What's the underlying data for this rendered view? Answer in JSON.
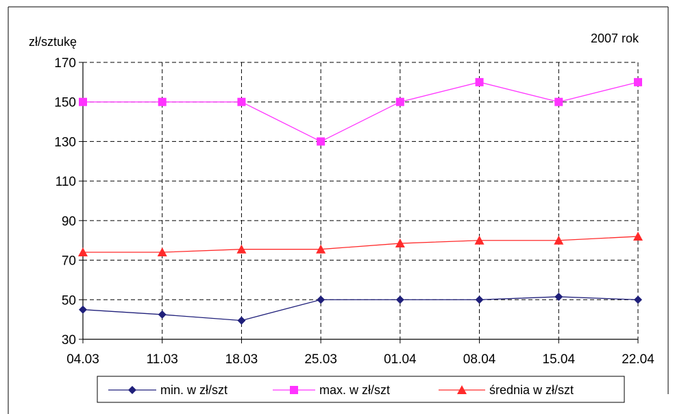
{
  "chart_data": {
    "type": "line",
    "ylabel": "zł/sztukę",
    "annotation": "2007 rok",
    "categories": [
      "04.03",
      "11.03",
      "18.03",
      "25.03",
      "01.04",
      "08.04",
      "15.04",
      "22.04"
    ],
    "ylim": [
      30,
      170
    ],
    "yticks": [
      30,
      50,
      70,
      90,
      110,
      130,
      150,
      170
    ],
    "grid": true,
    "legend_position": "bottom",
    "series": [
      {
        "name": "min. w zł/szt",
        "color": "#1f1f7a",
        "marker": "diamond",
        "values": [
          45,
          42.5,
          39.5,
          50,
          50,
          50,
          51.5,
          50
        ]
      },
      {
        "name": "max. w zł/szt",
        "color": "#ff33ff",
        "marker": "square",
        "values": [
          150,
          150,
          150,
          130,
          150,
          160,
          150,
          160
        ]
      },
      {
        "name": "średnia w zł/szt",
        "color": "#ff2a2a",
        "marker": "triangle",
        "values": [
          74,
          74,
          75.5,
          75.5,
          78.5,
          80,
          80,
          82
        ]
      }
    ]
  }
}
